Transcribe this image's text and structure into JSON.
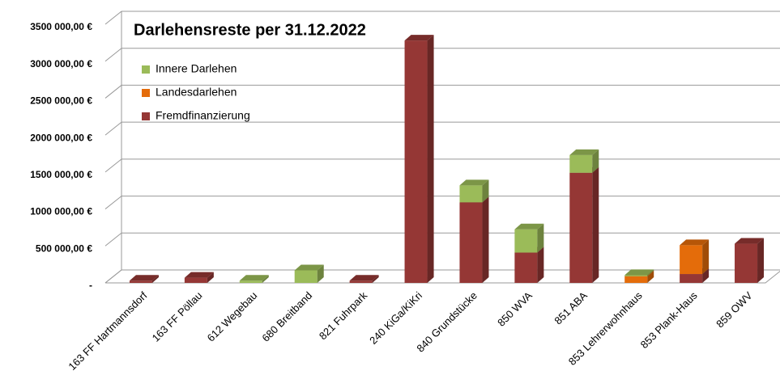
{
  "chart_data": {
    "type": "bar",
    "stacked": true,
    "title": "Darlehensreste per 31.12.2022",
    "categories": [
      "163 FF Hartmannsdorf",
      "163 FF Pöllau",
      "612 Wegebau",
      "680 Breitband",
      "821 Fuhrpark",
      "240 KiGa/KiKri",
      "840 Grundstücke",
      "850 WVA",
      "851 ABA",
      "853 Lehrerwohnhaus",
      "853 Plank-Haus",
      "859 OWV"
    ],
    "series": [
      {
        "name": "Fremdfinanzierung",
        "color": "#953735",
        "values": [
          30000,
          70000,
          0,
          0,
          30000,
          3280000,
          1090000,
          410000,
          1490000,
          0,
          120000,
          530000
        ]
      },
      {
        "name": "Landesdarlehen",
        "color": "#e46c0a",
        "values": [
          0,
          0,
          0,
          0,
          0,
          0,
          0,
          0,
          0,
          90000,
          390000,
          0
        ]
      },
      {
        "name": "Innere Darlehen",
        "color": "#9bbb59",
        "values": [
          0,
          0,
          30000,
          170000,
          0,
          0,
          230000,
          315000,
          240000,
          15000,
          0,
          0
        ]
      }
    ],
    "ylim": [
      0,
      3500000
    ],
    "yticks": [
      {
        "value": 0,
        "label": "-"
      },
      {
        "value": 500000,
        "label": "500 000,00 €"
      },
      {
        "value": 1000000,
        "label": "1000 000,00 €"
      },
      {
        "value": 1500000,
        "label": "1500 000,00 €"
      },
      {
        "value": 2000000,
        "label": "2000 000,00 €"
      },
      {
        "value": 2500000,
        "label": "2500 000,00 €"
      },
      {
        "value": 3000000,
        "label": "3000 000,00 €"
      },
      {
        "value": 3500000,
        "label": "3500 000,00 €"
      }
    ],
    "grid": true,
    "legend": "upper left"
  }
}
